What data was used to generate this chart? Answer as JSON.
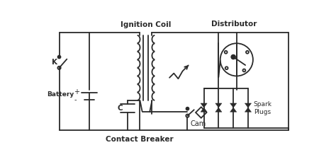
{
  "bg": "#ffffff",
  "lc": "#2a2a2a",
  "lw": 1.3,
  "labels": {
    "ignition_coil": "Ignition Coil",
    "distributor": "Distributor",
    "battery": "Battery",
    "contact_breaker": "Contact Breaker",
    "cam": "Cam",
    "spark_plugs": "Spark\nPlugs",
    "k": "K",
    "c": "C",
    "plus": "+",
    "minus": "-"
  },
  "fig_w": 4.74,
  "fig_h": 2.3,
  "dpi": 100
}
